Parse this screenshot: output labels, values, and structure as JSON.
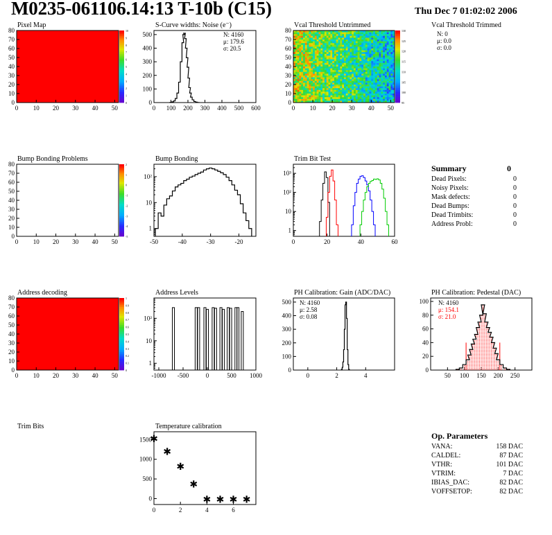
{
  "header": {
    "title": "M0235-061106.14:13 T-10b (C15)",
    "date": "Thu Dec  7 01:02:02 2006"
  },
  "chart_data": [
    {
      "id": "pixel-map",
      "type": "heatmap",
      "title": "Pixel Map",
      "xlim": [
        0,
        52
      ],
      "ylim": [
        0,
        80
      ],
      "xticks": [
        0,
        10,
        20,
        30,
        40,
        50
      ],
      "yticks": [
        0,
        10,
        20,
        30,
        40,
        50,
        60,
        70,
        80
      ],
      "fill": "uniform-max",
      "colorbar": {
        "min": 0,
        "max": 10,
        "ticks": [
          "10",
          "9",
          "8",
          "7",
          "6",
          "5",
          "4",
          "3",
          "2",
          "1",
          "0"
        ]
      }
    },
    {
      "id": "scurve-widths",
      "type": "histogram",
      "title": "S-Curve widths: Noise (e⁻)",
      "xlim": [
        0,
        600
      ],
      "ylim": [
        0,
        530
      ],
      "xticks": [
        0,
        100,
        200,
        300,
        400,
        500,
        600
      ],
      "yticks": [
        0,
        100,
        200,
        300,
        400,
        500
      ],
      "x": [
        100,
        110,
        120,
        130,
        140,
        150,
        160,
        170,
        175,
        180,
        185,
        190,
        195,
        200,
        205,
        210,
        215,
        220,
        230,
        240,
        250,
        260
      ],
      "values": [
        2,
        5,
        12,
        30,
        70,
        150,
        300,
        440,
        500,
        510,
        470,
        400,
        330,
        260,
        180,
        110,
        70,
        40,
        20,
        8,
        3,
        1
      ],
      "stats": {
        "lines": [
          "N: 4160",
          "μ: 179.6",
          "σ: 20.5"
        ]
      },
      "color": "#000000"
    },
    {
      "id": "vcal-untrimmed",
      "type": "heatmap",
      "title": "Vcal Threshold Untrimmed",
      "xlim": [
        0,
        52
      ],
      "ylim": [
        0,
        80
      ],
      "xticks": [
        0,
        10,
        20,
        30,
        40,
        50
      ],
      "yticks": [
        0,
        10,
        20,
        30,
        40,
        50,
        60,
        70,
        80
      ],
      "fill": "noisy-gradient",
      "colorbar": {
        "min": 95,
        "max": 130,
        "ticks": [
          "130",
          "125",
          "120",
          "115",
          "110",
          "105",
          "100",
          "95"
        ]
      }
    },
    {
      "id": "vcal-trimmed",
      "type": "table",
      "title": "Vcal Threshold Trimmed",
      "stats": {
        "lines": [
          "N:    0",
          "μ:  0.0",
          "σ:  0.0"
        ]
      }
    },
    {
      "id": "bump-problems",
      "type": "heatmap",
      "title": "Bump Bonding Problems",
      "xlim": [
        0,
        52
      ],
      "ylim": [
        0,
        80
      ],
      "xticks": [
        0,
        10,
        20,
        30,
        40,
        50
      ],
      "yticks": [
        0,
        10,
        20,
        30,
        40,
        50,
        60,
        70,
        80
      ],
      "fill": "empty",
      "colorbar": {
        "min": -5,
        "max": 2,
        "ticks": [
          "2",
          "1",
          "0",
          "-1",
          "-2",
          "-3",
          "-4",
          "-5"
        ]
      }
    },
    {
      "id": "bump-bonding",
      "type": "histogram",
      "title": "Bump Bonding",
      "log": true,
      "xlim": [
        -50,
        -14
      ],
      "ylim": [
        0.5,
        300
      ],
      "xticks": [
        -50,
        -40,
        -30,
        -20
      ],
      "yticks": [
        "1",
        "10",
        "10²"
      ],
      "x": [
        -49,
        -48,
        -47,
        -46,
        -45,
        -44,
        -43,
        -42,
        -41,
        -40,
        -39,
        -38,
        -37,
        -36,
        -35,
        -34,
        -33,
        -32,
        -31,
        -30,
        -29,
        -28,
        -27,
        -26,
        -25,
        -24,
        -23,
        -22,
        -21,
        -20,
        -19,
        -18,
        -17,
        -16
      ],
      "values": [
        1,
        4,
        3,
        8,
        14,
        18,
        28,
        40,
        48,
        55,
        70,
        80,
        95,
        105,
        120,
        135,
        150,
        180,
        200,
        215,
        200,
        180,
        160,
        140,
        120,
        95,
        70,
        48,
        30,
        20,
        9,
        4,
        2,
        1
      ],
      "color": "#000000"
    },
    {
      "id": "trim-bit-test",
      "type": "histogram",
      "title": "Trim Bit Test",
      "log": true,
      "xlim": [
        0,
        60
      ],
      "ylim": [
        0.5,
        3000
      ],
      "xticks": [
        0,
        20,
        40,
        60
      ],
      "yticks": [
        "1",
        "10",
        "10²",
        "10³"
      ],
      "series": [
        {
          "color": "#000000",
          "x": [
            16,
            17,
            18,
            19,
            20,
            21
          ],
          "values": [
            3,
            40,
            300,
            1200,
            600,
            30
          ]
        },
        {
          "color": "#ff0000",
          "x": [
            20,
            21,
            22,
            23,
            24,
            25,
            26
          ],
          "values": [
            5,
            100,
            700,
            1500,
            400,
            40,
            2
          ]
        },
        {
          "color": "#0000ff",
          "x": [
            35,
            36,
            37,
            38,
            39,
            40,
            41,
            42,
            43,
            44,
            45,
            46,
            47,
            48
          ],
          "values": [
            2,
            20,
            100,
            300,
            500,
            700,
            750,
            600,
            400,
            250,
            120,
            40,
            10,
            2
          ]
        },
        {
          "color": "#00cc00",
          "x": [
            40,
            41,
            42,
            43,
            44,
            45,
            46,
            47,
            48,
            49,
            50,
            51,
            52,
            53,
            54,
            55,
            56
          ],
          "values": [
            2,
            10,
            40,
            100,
            200,
            300,
            380,
            420,
            500,
            480,
            520,
            450,
            300,
            150,
            50,
            10,
            2
          ]
        }
      ]
    },
    {
      "id": "summary",
      "type": "table",
      "title": "Summary",
      "total": "0",
      "rows": [
        {
          "label": "Dead Pixels:",
          "value": "0"
        },
        {
          "label": "Noisy Pixels:",
          "value": "0"
        },
        {
          "label": "Mask defects:",
          "value": "0"
        },
        {
          "label": "Dead Bumps:",
          "value": "0"
        },
        {
          "label": "Dead Trimbits:",
          "value": "0"
        },
        {
          "label": "Address Probl:",
          "value": "0"
        }
      ]
    },
    {
      "id": "address-decoding",
      "type": "heatmap",
      "title": "Address decoding",
      "xlim": [
        0,
        52
      ],
      "ylim": [
        0,
        80
      ],
      "xticks": [
        0,
        10,
        20,
        30,
        40,
        50
      ],
      "yticks": [
        0,
        10,
        20,
        30,
        40,
        50,
        60,
        70,
        80
      ],
      "fill": "uniform-max",
      "colorbar": {
        "min": 0,
        "max": 1,
        "ticks": [
          "1",
          "0.9",
          "0.8",
          "0.7",
          "0.6",
          "0.5",
          "0.4",
          "0.3",
          "0.2",
          "0.1",
          "0"
        ]
      }
    },
    {
      "id": "address-levels",
      "type": "histogram",
      "title": "Address Levels",
      "log": true,
      "xlim": [
        -1100,
        1000
      ],
      "ylim": [
        0.5,
        800
      ],
      "xticks": [
        -1000,
        -500,
        0,
        500,
        1000
      ],
      "yticks": [
        "1",
        "10",
        "10²"
      ],
      "spikes": [
        {
          "x": -700,
          "value": 300
        },
        {
          "x": -230,
          "value": 300
        },
        {
          "x": -180,
          "value": 300
        },
        {
          "x": -50,
          "value": 300
        },
        {
          "x": 0,
          "value": 250
        },
        {
          "x": 120,
          "value": 300
        },
        {
          "x": 170,
          "value": 280
        },
        {
          "x": 280,
          "value": 300
        },
        {
          "x": 330,
          "value": 250
        },
        {
          "x": 430,
          "value": 300
        },
        {
          "x": 480,
          "value": 280
        },
        {
          "x": 590,
          "value": 300
        },
        {
          "x": 630,
          "value": 300
        },
        {
          "x": 720,
          "value": 200
        }
      ],
      "color": "#000000"
    },
    {
      "id": "ph-gain",
      "type": "histogram",
      "title": "PH Calibration: Gain (ADC/DAC)",
      "xlim": [
        -1,
        6
      ],
      "ylim": [
        0,
        530
      ],
      "xticks": [
        0,
        2,
        4
      ],
      "yticks": [
        0,
        100,
        200,
        300,
        400,
        500
      ],
      "x": [
        2.35,
        2.4,
        2.45,
        2.5,
        2.55,
        2.6,
        2.65,
        2.7,
        2.75,
        2.8,
        2.85
      ],
      "values": [
        5,
        20,
        60,
        150,
        300,
        480,
        500,
        380,
        150,
        40,
        5
      ],
      "stats": {
        "lines": [
          "N: 4160",
          "μ: 2.58",
          "σ: 0.08"
        ]
      },
      "color": "#000000"
    },
    {
      "id": "ph-pedestal",
      "type": "histogram",
      "title": "PH Calibration: Pedestal (DAC)",
      "xlim": [
        0,
        300
      ],
      "ylim": [
        0,
        105
      ],
      "xticks": [
        50,
        100,
        150,
        200,
        250
      ],
      "yticks": [
        0,
        20,
        40,
        60,
        80,
        100
      ],
      "x": [
        80,
        90,
        100,
        110,
        115,
        120,
        125,
        130,
        135,
        140,
        145,
        150,
        155,
        160,
        165,
        170,
        175,
        180,
        185,
        190,
        195,
        200,
        210,
        220,
        230
      ],
      "values": [
        1,
        3,
        8,
        15,
        22,
        30,
        38,
        45,
        52,
        62,
        70,
        80,
        95,
        82,
        70,
        62,
        55,
        48,
        40,
        32,
        24,
        15,
        8,
        3,
        1
      ],
      "fit_range": [
        105,
        205
      ],
      "fit_height": 40,
      "stats": {
        "lines": [
          "N: 4160",
          "μ: 154.1",
          "σ: 21.0"
        ],
        "colors": [
          "#000000",
          "#ff0000",
          "#ff0000"
        ]
      },
      "color": "#000000",
      "fit_color": "#ff0000"
    },
    {
      "id": "trim-bits",
      "type": "heatmap",
      "title": "Trim Bits",
      "fill": "none"
    },
    {
      "id": "temp-calibration",
      "type": "scatter",
      "title": "Temperature calibration",
      "xlim": [
        0,
        7.7
      ],
      "ylim": [
        -150,
        1700
      ],
      "xticks": [
        0,
        2,
        4,
        6
      ],
      "yticks": [
        0,
        500,
        1000,
        1500
      ],
      "x": [
        0,
        1,
        2,
        3,
        4,
        5,
        6,
        7
      ],
      "values": [
        1520,
        1200,
        820,
        370,
        -20,
        -20,
        -20,
        -20
      ],
      "marker": "✱"
    },
    {
      "id": "op-parameters",
      "type": "table",
      "title": "Op. Parameters",
      "rows": [
        {
          "label": "VANA:",
          "value": "158 DAC"
        },
        {
          "label": "CALDEL:",
          "value": "87 DAC"
        },
        {
          "label": "VTHR:",
          "value": "101 DAC"
        },
        {
          "label": "VTRIM:",
          "value": "7 DAC"
        },
        {
          "label": "IBIAS_DAC:",
          "value": "82 DAC"
        },
        {
          "label": "VOFFSETOP:",
          "value": "82 DAC"
        }
      ]
    }
  ]
}
